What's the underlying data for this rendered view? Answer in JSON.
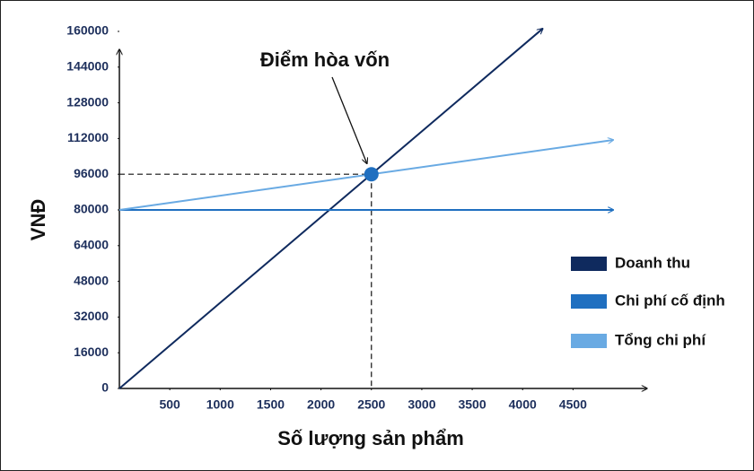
{
  "chart_data": {
    "type": "line",
    "x_label": "Số lượng sản phẩm",
    "y_label": "VNĐ",
    "xlim": [
      0,
      5200
    ],
    "ylim": [
      0,
      160000
    ],
    "xticks": [
      500,
      1000,
      1500,
      2000,
      2500,
      3000,
      3500,
      4000,
      4500
    ],
    "yticks": [
      0,
      16000,
      32000,
      48000,
      64000,
      80000,
      96000,
      112000,
      128000,
      144000,
      160000
    ],
    "series": [
      {
        "name": "Doanh thu",
        "color": "#0f2a5e",
        "x": [
          0,
          4200
        ],
        "values": [
          0,
          161280
        ]
      },
      {
        "name": "Chi phí cố định",
        "color": "#1f6fc0",
        "x": [
          0,
          4900
        ],
        "values": [
          80000,
          80000
        ]
      },
      {
        "name": "Tổng chi phí",
        "color": "#69aae3",
        "x": [
          0,
          4900
        ],
        "values": [
          80000,
          111360
        ]
      }
    ],
    "break_even": {
      "label": "Điểm hòa vốn",
      "x": 2500,
      "y": 96000,
      "color": "#1f6fc0"
    },
    "legend": "right"
  }
}
